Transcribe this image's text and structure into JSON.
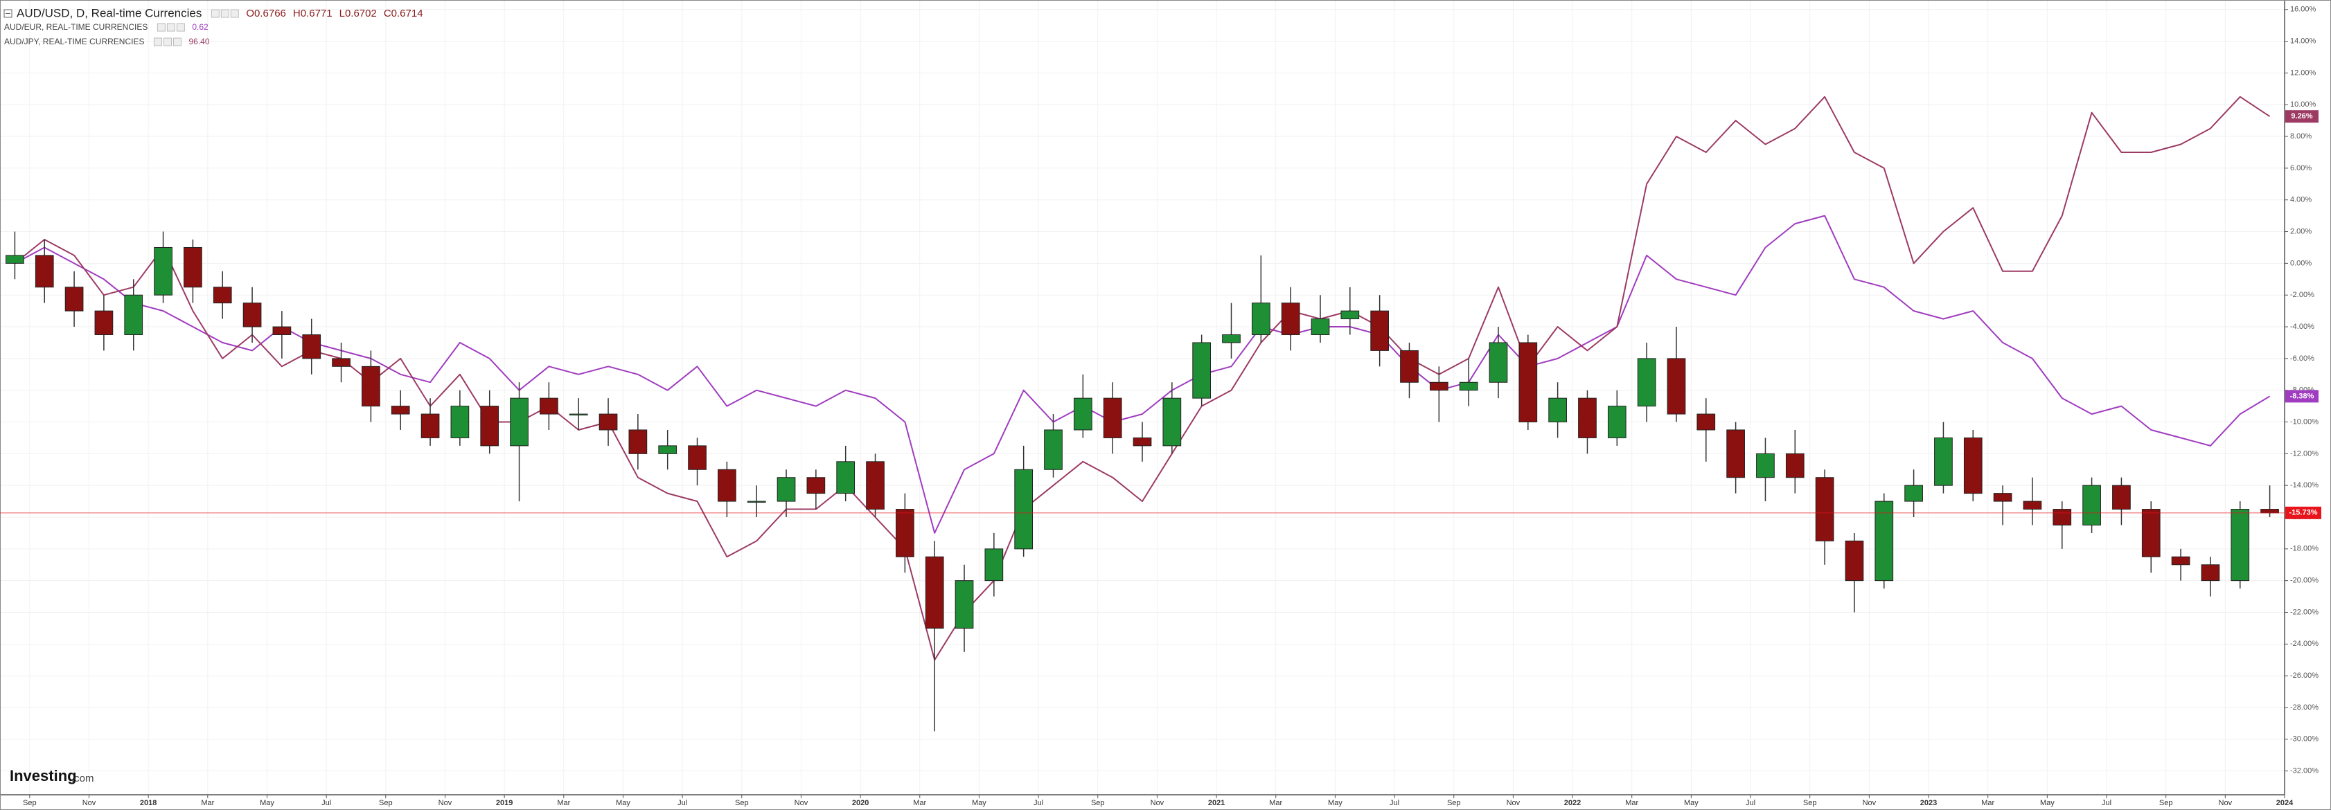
{
  "chart_data": {
    "type": "candlestick",
    "title": "AUD/USD, D, Real-time Currencies",
    "ohlc_readout": [
      "O0.6766",
      "H0.6771",
      "L0.6702",
      "C0.6714"
    ],
    "x": [
      "2017-08",
      "2017-09",
      "2017-10",
      "2017-11",
      "2017-12",
      "2018-01",
      "2018-02",
      "2018-03",
      "2018-04",
      "2018-05",
      "2018-06",
      "2018-07",
      "2018-08",
      "2018-09",
      "2018-10",
      "2018-11",
      "2018-12",
      "2019-01",
      "2019-02",
      "2019-03",
      "2019-04",
      "2019-05",
      "2019-06",
      "2019-07",
      "2019-08",
      "2019-09",
      "2019-10",
      "2019-11",
      "2019-12",
      "2020-01",
      "2020-02",
      "2020-03",
      "2020-04",
      "2020-05",
      "2020-06",
      "2020-07",
      "2020-08",
      "2020-09",
      "2020-10",
      "2020-11",
      "2020-12",
      "2021-01",
      "2021-02",
      "2021-03",
      "2021-04",
      "2021-05",
      "2021-06",
      "2021-07",
      "2021-08",
      "2021-09",
      "2021-10",
      "2021-11",
      "2021-12",
      "2022-01",
      "2022-02",
      "2022-03",
      "2022-04",
      "2022-05",
      "2022-06",
      "2022-07",
      "2022-08",
      "2022-09",
      "2022-10",
      "2022-11",
      "2022-12",
      "2023-01",
      "2023-02",
      "2023-03",
      "2023-04",
      "2023-05",
      "2023-06",
      "2023-07",
      "2023-08",
      "2023-09",
      "2023-10",
      "2023-11",
      "2023-12"
    ],
    "open": [
      0,
      0.5,
      -1.5,
      -3,
      -4.5,
      -2,
      1,
      -1.5,
      -2.5,
      -4,
      -4.5,
      -6,
      -6.5,
      -9,
      -9.5,
      -11,
      -9,
      -11.5,
      -8.5,
      -9.5,
      -9.5,
      -10.5,
      -12,
      -11.5,
      -13,
      -15,
      -15,
      -13.5,
      -14.5,
      -12.5,
      -15.5,
      -18.5,
      -23,
      -20,
      -18,
      -13,
      -10.5,
      -8.5,
      -11,
      -11.5,
      -8.5,
      -5,
      -4.5,
      -2.5,
      -4.5,
      -3.5,
      -3,
      -5.5,
      -7.5,
      -8,
      -7.5,
      -5,
      -10,
      -8.5,
      -11,
      -9,
      -6,
      -9.5,
      -10.5,
      -13.5,
      -12,
      -13.5,
      -17.5,
      -20,
      -15,
      -14,
      -11,
      -14.5,
      -15,
      -15.5,
      -16.5,
      -14,
      -15.5,
      -18.5,
      -19,
      -20,
      -15.5
    ],
    "high": [
      2,
      1.5,
      -0.5,
      -2,
      -1,
      2,
      1.5,
      -0.5,
      -1.5,
      -3,
      -3.5,
      -5,
      -5.5,
      -8,
      -8.5,
      -8,
      -8,
      -7.5,
      -7.5,
      -8.5,
      -8.5,
      -9.5,
      -10.5,
      -11,
      -12.5,
      -14,
      -13,
      -13,
      -11.5,
      -12,
      -14.5,
      -17.5,
      -19,
      -17,
      -11.5,
      -9.5,
      -7,
      -7.5,
      -10,
      -7.5,
      -4.5,
      -2.5,
      0.5,
      -1.5,
      -2,
      -1.5,
      -2,
      -5,
      -6.5,
      -6,
      -4,
      -4.5,
      -7.5,
      -8,
      -8,
      -5,
      -4,
      -8.5,
      -10,
      -11,
      -10.5,
      -13,
      -17,
      -14.5,
      -13,
      -10,
      -10.5,
      -14,
      -13.5,
      -15,
      -13.5,
      -13.5,
      -15,
      -18,
      -18.5,
      -15,
      -14
    ],
    "low": [
      -1,
      -2.5,
      -4,
      -5.5,
      -5.5,
      -2.5,
      -2.5,
      -3.5,
      -5,
      -6,
      -7,
      -7.5,
      -10,
      -10.5,
      -11.5,
      -11.5,
      -12,
      -15,
      -10.5,
      -10.5,
      -11.5,
      -13,
      -13,
      -14,
      -16,
      -16,
      -16,
      -15.5,
      -15,
      -16,
      -19.5,
      -29.5,
      -24.5,
      -21,
      -18.5,
      -13.5,
      -11,
      -12,
      -12.5,
      -12,
      -9,
      -6,
      -5,
      -5.5,
      -5,
      -4.5,
      -6.5,
      -8.5,
      -10,
      -9,
      -8.5,
      -10.5,
      -11,
      -12,
      -11.5,
      -10,
      -10,
      -12.5,
      -14.5,
      -15,
      -14.5,
      -19,
      -22,
      -20.5,
      -16,
      -14.5,
      -15,
      -16.5,
      -16.5,
      -18,
      -17,
      -16.5,
      -19.5,
      -20,
      -21,
      -20.5,
      -16
    ],
    "close": [
      0.5,
      -1.5,
      -3,
      -4.5,
      -2,
      1,
      -1.5,
      -2.5,
      -4,
      -4.5,
      -6,
      -6.5,
      -9,
      -9.5,
      -11,
      -9,
      -11.5,
      -8.5,
      -9.5,
      -9.5,
      -10.5,
      -12,
      -11.5,
      -13,
      -15,
      -15,
      -13.5,
      -14.5,
      -12.5,
      -15.5,
      -18.5,
      -23,
      -20,
      -18,
      -13,
      -10.5,
      -8.5,
      -11,
      -11.5,
      -8.5,
      -5,
      -4.5,
      -2.5,
      -4.5,
      -3.5,
      -3,
      -5.5,
      -7.5,
      -8,
      -7.5,
      -5,
      -10,
      -8.5,
      -11,
      -9,
      -6,
      -9.5,
      -10.5,
      -13.5,
      -12,
      -13.5,
      -17.5,
      -20,
      -15,
      -14,
      -11,
      -14.5,
      -15,
      -15.5,
      -16.5,
      -14,
      -15.5,
      -18.5,
      -19,
      -20,
      -15.5,
      -15.73
    ],
    "up_color": "#1f8f35",
    "down_color": "#8b1010",
    "end_label": "-15.73%",
    "end_label_color": "#e8141c",
    "series": [
      {
        "name": "AUD/EUR, REAL-TIME CURRENCIES",
        "last": "0.62",
        "color": "#a03cc0",
        "end_label": "-8.38%",
        "values": [
          0,
          1,
          0,
          -1,
          -2.5,
          -3,
          -4,
          -5,
          -5.5,
          -4,
          -5,
          -5.5,
          -6,
          -7,
          -7.5,
          -5,
          -6,
          -8,
          -6.5,
          -7,
          -6.5,
          -7,
          -8,
          -6.5,
          -9,
          -8,
          -8.5,
          -9,
          -8,
          -8.5,
          -10,
          -17,
          -13,
          -12,
          -8,
          -10,
          -9,
          -10,
          -9.5,
          -8,
          -7,
          -6.5,
          -4,
          -4.5,
          -4,
          -4,
          -4.5,
          -6.5,
          -8,
          -7.5,
          -4.5,
          -6.5,
          -6,
          -5,
          -4,
          0.5,
          -1,
          -1.5,
          -2,
          1,
          2.5,
          3,
          -1,
          -1.5,
          -3,
          -3.5,
          -3,
          -5,
          -6,
          -8.5,
          -9.5,
          -9,
          -10.5,
          -11,
          -11.5,
          -9.5,
          -8.38
        ]
      },
      {
        "name": "AUD/JPY, REAL-TIME CURRENCIES",
        "last": "96.40",
        "color": "#9c3a64",
        "end_label": "9.26%",
        "values": [
          0,
          1.5,
          0.5,
          -2,
          -1.5,
          1,
          -3,
          -6,
          -4.5,
          -6.5,
          -5.5,
          -6,
          -7.5,
          -6,
          -9,
          -7,
          -10,
          -10,
          -9,
          -10.5,
          -10,
          -13.5,
          -14.5,
          -15,
          -18.5,
          -17.5,
          -15.5,
          -15.5,
          -14,
          -16,
          -18,
          -25,
          -22,
          -20,
          -15.5,
          -14,
          -12.5,
          -13.5,
          -15,
          -12,
          -9,
          -8,
          -5,
          -3,
          -3.5,
          -3,
          -4,
          -6,
          -7,
          -6,
          -1.5,
          -6.5,
          -4,
          -5.5,
          -4,
          5,
          8,
          7,
          9,
          7.5,
          8.5,
          10.5,
          7,
          6,
          0,
          2,
          3.5,
          -0.5,
          -0.5,
          3,
          9.5,
          7,
          7,
          7.5,
          8.5,
          10.5,
          9.26
        ]
      }
    ],
    "xlim": [
      "2017-08",
      "2024-01"
    ],
    "xticks": [
      {
        "value": "2017-09",
        "label": "Sep"
      },
      {
        "value": "2017-11",
        "label": "Nov"
      },
      {
        "value": "2018-01",
        "label": "2018"
      },
      {
        "value": "2018-03",
        "label": "Mar"
      },
      {
        "value": "2018-05",
        "label": "May"
      },
      {
        "value": "2018-07",
        "label": "Jul"
      },
      {
        "value": "2018-09",
        "label": "Sep"
      },
      {
        "value": "2018-11",
        "label": "Nov"
      },
      {
        "value": "2019-01",
        "label": "2019"
      },
      {
        "value": "2019-03",
        "label": "Mar"
      },
      {
        "value": "2019-05",
        "label": "May"
      },
      {
        "value": "2019-07",
        "label": "Jul"
      },
      {
        "value": "2019-09",
        "label": "Sep"
      },
      {
        "value": "2019-11",
        "label": "Nov"
      },
      {
        "value": "2020-01",
        "label": "2020"
      },
      {
        "value": "2020-03",
        "label": "Mar"
      },
      {
        "value": "2020-05",
        "label": "May"
      },
      {
        "value": "2020-07",
        "label": "Jul"
      },
      {
        "value": "2020-09",
        "label": "Sep"
      },
      {
        "value": "2020-11",
        "label": "Nov"
      },
      {
        "value": "2021-01",
        "label": "2021"
      },
      {
        "value": "2021-03",
        "label": "Mar"
      },
      {
        "value": "2021-05",
        "label": "May"
      },
      {
        "value": "2021-07",
        "label": "Jul"
      },
      {
        "value": "2021-09",
        "label": "Sep"
      },
      {
        "value": "2021-11",
        "label": "Nov"
      },
      {
        "value": "2022-01",
        "label": "2022"
      },
      {
        "value": "2022-03",
        "label": "Mar"
      },
      {
        "value": "2022-05",
        "label": "May"
      },
      {
        "value": "2022-07",
        "label": "Jul"
      },
      {
        "value": "2022-09",
        "label": "Sep"
      },
      {
        "value": "2022-11",
        "label": "Nov"
      },
      {
        "value": "2023-01",
        "label": "2023"
      },
      {
        "value": "2023-03",
        "label": "Mar"
      },
      {
        "value": "2023-05",
        "label": "May"
      },
      {
        "value": "2023-07",
        "label": "Jul"
      },
      {
        "value": "2023-09",
        "label": "Sep"
      },
      {
        "value": "2023-11",
        "label": "Nov"
      },
      {
        "value": "2024-01",
        "label": "2024"
      }
    ],
    "ylim": [
      -33.5,
      16.6
    ],
    "yticks": [
      {
        "value": 16,
        "label": "16.00%"
      },
      {
        "value": 14,
        "label": "14.00%"
      },
      {
        "value": 12,
        "label": "12.00%"
      },
      {
        "value": 10,
        "label": "10.00%"
      },
      {
        "value": 8,
        "label": "8.00%"
      },
      {
        "value": 6,
        "label": "6.00%"
      },
      {
        "value": 4,
        "label": "4.00%"
      },
      {
        "value": 2,
        "label": "2.00%"
      },
      {
        "value": 0,
        "label": "0.00%"
      },
      {
        "value": -2,
        "label": "-2.00%"
      },
      {
        "value": -4,
        "label": "-4.00%"
      },
      {
        "value": -6,
        "label": "-6.00%"
      },
      {
        "value": -8,
        "label": "-8.00%"
      },
      {
        "value": -10,
        "label": "-10.00%"
      },
      {
        "value": -12,
        "label": "-12.00%"
      },
      {
        "value": -14,
        "label": "-14.00%"
      },
      {
        "value": -16,
        "label": "-16.00%"
      },
      {
        "value": -18,
        "label": "-18.00%"
      },
      {
        "value": -20,
        "label": "-20.00%"
      },
      {
        "value": -22,
        "label": "-22.00%"
      },
      {
        "value": -24,
        "label": "-24.00%"
      },
      {
        "value": -26,
        "label": "-26.00%"
      },
      {
        "value": -28,
        "label": "-28.00%"
      },
      {
        "value": -30,
        "label": "-30.00%"
      },
      {
        "value": -32,
        "label": "-32.00%"
      }
    ],
    "grid": true
  },
  "watermark": {
    "brand": "Investing",
    "suffix": ".com"
  }
}
